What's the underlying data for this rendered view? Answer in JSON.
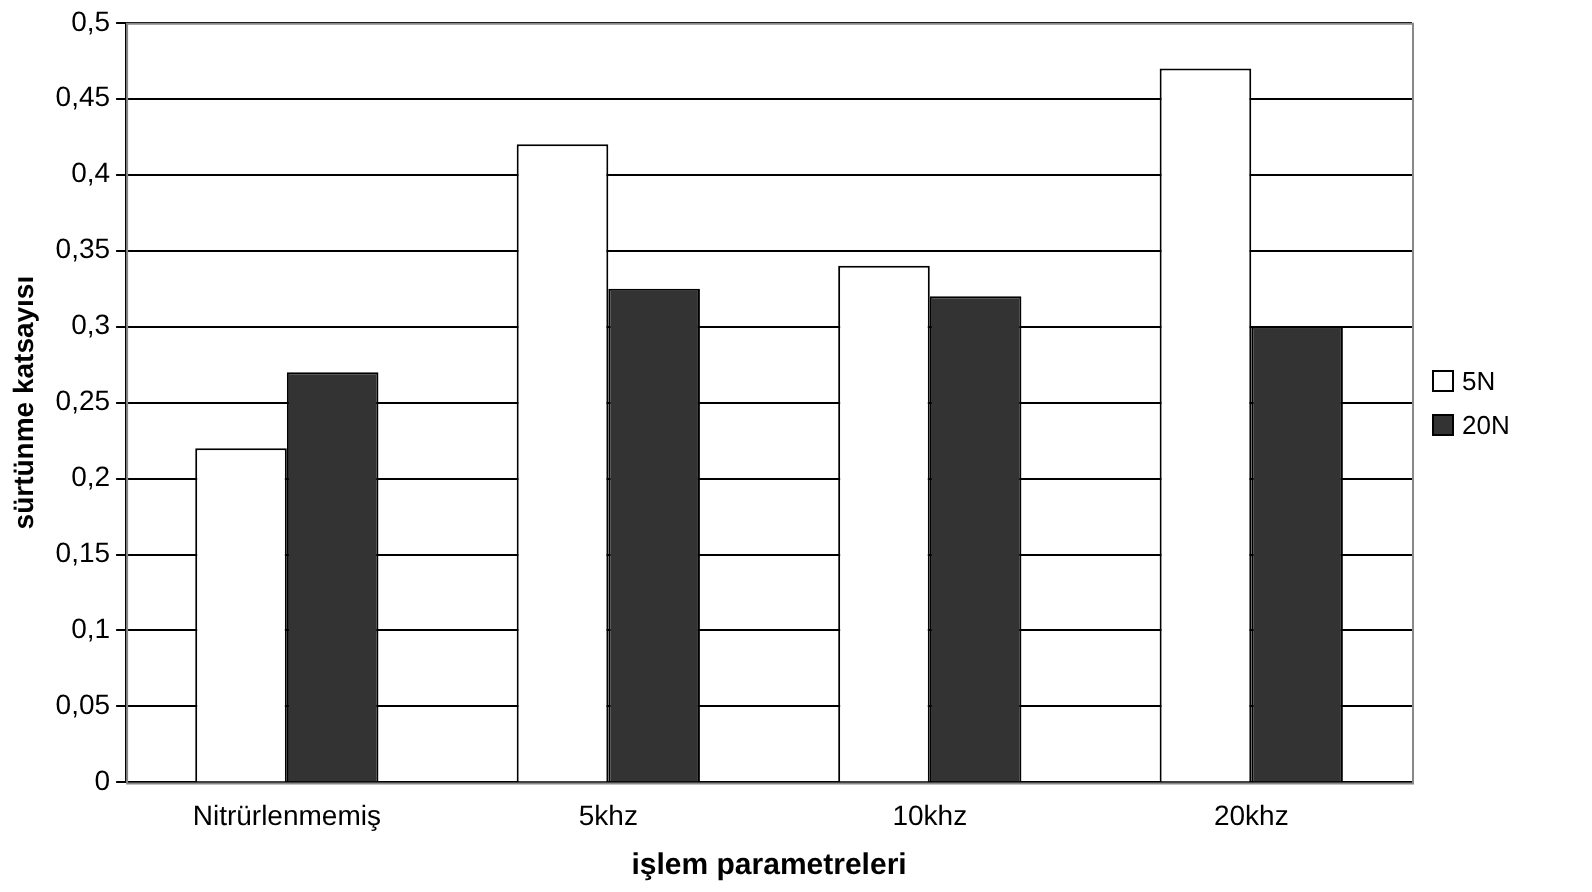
{
  "chart_data": {
    "type": "bar",
    "xlabel": "işlem parametreleri",
    "ylabel": "sürtünme katsayısı",
    "categories": [
      "Nitrürlenmemiş",
      "5khz",
      "10khz",
      "20khz"
    ],
    "series": [
      {
        "name": "5N",
        "color": "#ffffff",
        "values": [
          0.22,
          0.42,
          0.34,
          0.47
        ]
      },
      {
        "name": "20N",
        "color": "#333333",
        "values": [
          0.27,
          0.325,
          0.32,
          0.3
        ]
      }
    ],
    "ylim": [
      0,
      0.5
    ],
    "yticks": [
      0,
      {
        "value": 0.05,
        "label": "0,05"
      },
      {
        "value": 0.1,
        "label": "0,1"
      },
      {
        "value": 0.15,
        "label": "0,15"
      },
      {
        "value": 0.2,
        "label": "0,2"
      },
      {
        "value": 0.25,
        "label": "0,25"
      },
      {
        "value": 0.3,
        "label": "0,3"
      },
      {
        "value": 0.35,
        "label": "0,35"
      },
      {
        "value": 0.4,
        "label": "0,4"
      },
      {
        "value": 0.45,
        "label": "0,45"
      },
      {
        "value": 0.5,
        "label": "0,5"
      }
    ],
    "grid": "y",
    "legend": "right"
  }
}
